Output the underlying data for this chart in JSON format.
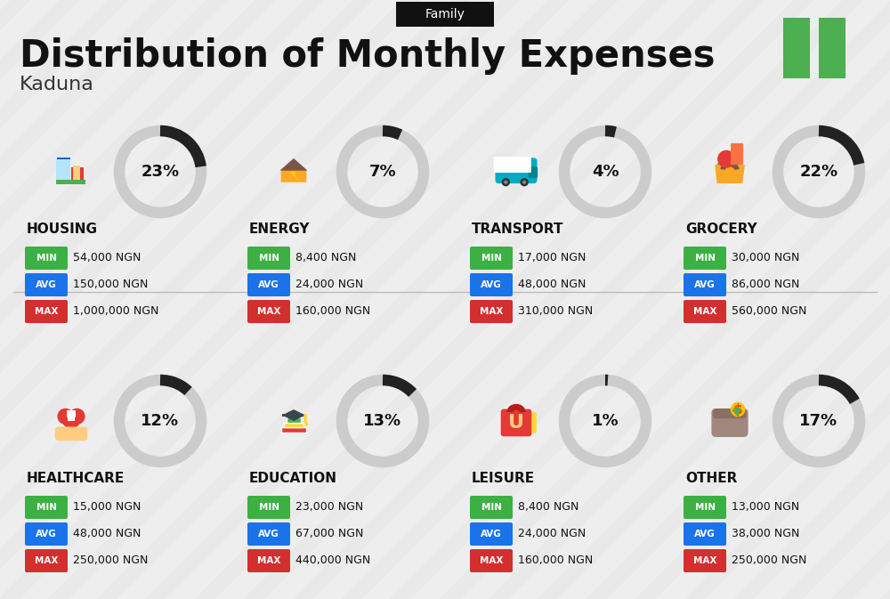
{
  "title": "Distribution of Monthly Expenses",
  "subtitle": "Kaduna",
  "tag": "Family",
  "background_color": "#eeeeee",
  "categories": [
    {
      "name": "HOUSING",
      "percent": 23,
      "min": "54,000 NGN",
      "avg": "150,000 NGN",
      "max": "1,000,000 NGN",
      "row": 0,
      "col": 0
    },
    {
      "name": "ENERGY",
      "percent": 7,
      "min": "8,400 NGN",
      "avg": "24,000 NGN",
      "max": "160,000 NGN",
      "row": 0,
      "col": 1
    },
    {
      "name": "TRANSPORT",
      "percent": 4,
      "min": "17,000 NGN",
      "avg": "48,000 NGN",
      "max": "310,000 NGN",
      "row": 0,
      "col": 2
    },
    {
      "name": "GROCERY",
      "percent": 22,
      "min": "30,000 NGN",
      "avg": "86,000 NGN",
      "max": "560,000 NGN",
      "row": 0,
      "col": 3
    },
    {
      "name": "HEALTHCARE",
      "percent": 12,
      "min": "15,000 NGN",
      "avg": "48,000 NGN",
      "max": "250,000 NGN",
      "row": 1,
      "col": 0
    },
    {
      "name": "EDUCATION",
      "percent": 13,
      "min": "23,000 NGN",
      "avg": "67,000 NGN",
      "max": "440,000 NGN",
      "row": 1,
      "col": 1
    },
    {
      "name": "LEISURE",
      "percent": 1,
      "min": "8,400 NGN",
      "avg": "24,000 NGN",
      "max": "160,000 NGN",
      "row": 1,
      "col": 2
    },
    {
      "name": "OTHER",
      "percent": 17,
      "min": "13,000 NGN",
      "avg": "38,000 NGN",
      "max": "250,000 NGN",
      "row": 1,
      "col": 3
    }
  ],
  "min_color": "#3cb043",
  "avg_color": "#1a73e8",
  "max_color": "#d32f2f",
  "arc_dark": "#222222",
  "arc_light": "#cccccc",
  "nigeria_green": "#4caf50",
  "stripe_color": "#d8d8d8",
  "tag_bg": "#111111"
}
